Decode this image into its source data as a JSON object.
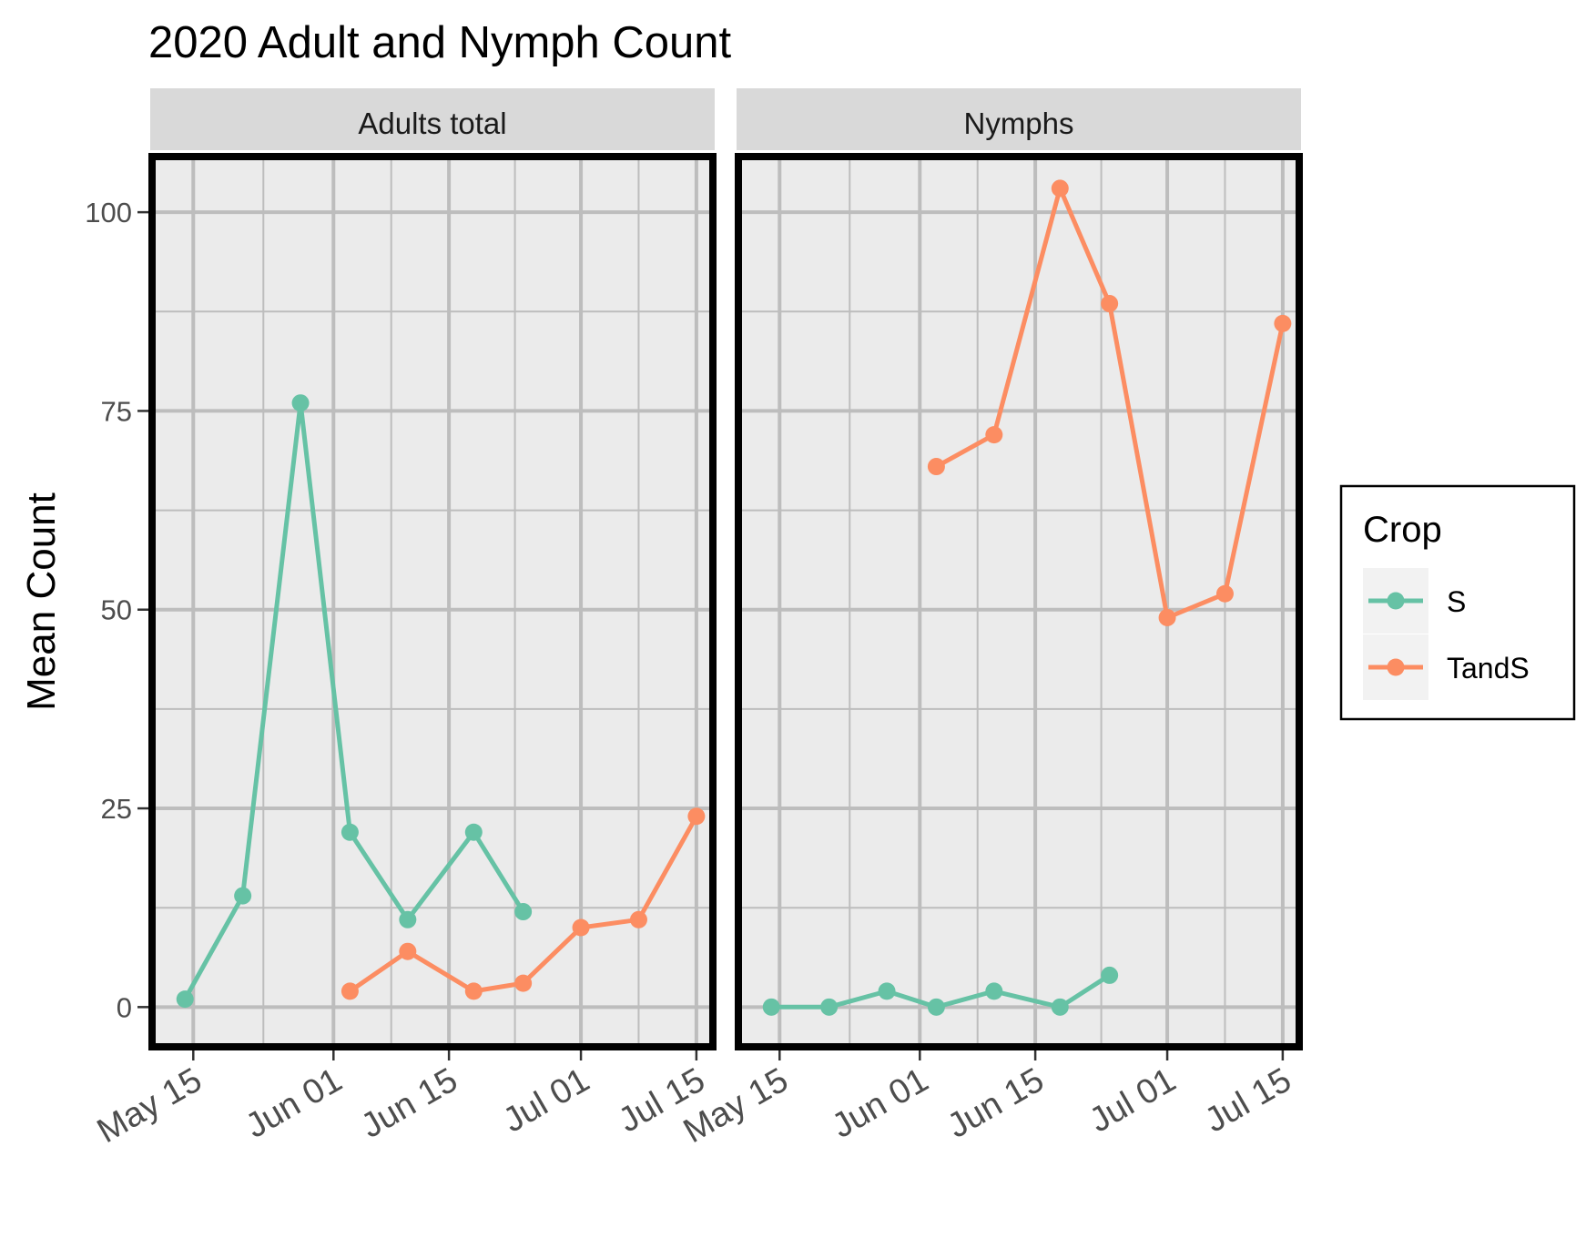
{
  "chart_data": {
    "type": "line",
    "title": "2020 Adult and Nymph Count",
    "ylabel": "Mean Count",
    "xlabel": "",
    "ylim": [
      -5,
      107
    ],
    "xlim": [
      "2020-05-10",
      "2020-07-17"
    ],
    "y_ticks": [
      0,
      25,
      50,
      75,
      100
    ],
    "x_ticks": [
      {
        "date": "2020-05-15",
        "label": "May 15"
      },
      {
        "date": "2020-06-01",
        "label": "Jun 01"
      },
      {
        "date": "2020-06-15",
        "label": "Jun 15"
      },
      {
        "date": "2020-07-01",
        "label": "Jul 01"
      },
      {
        "date": "2020-07-15",
        "label": "Jul 15"
      }
    ],
    "grid": true,
    "legend": {
      "title": "Crop",
      "position": "right"
    },
    "colors": {
      "S": "#66c2a5",
      "TandS": "#fc8d62"
    },
    "panels": [
      {
        "label": "Adults total",
        "series": [
          {
            "name": "S",
            "points": [
              {
                "x": "2020-05-14",
                "y": 1
              },
              {
                "x": "2020-05-21",
                "y": 14
              },
              {
                "x": "2020-05-28",
                "y": 76
              },
              {
                "x": "2020-06-03",
                "y": 22
              },
              {
                "x": "2020-06-10",
                "y": 11
              },
              {
                "x": "2020-06-18",
                "y": 22
              },
              {
                "x": "2020-06-24",
                "y": 12
              }
            ]
          },
          {
            "name": "TandS",
            "points": [
              {
                "x": "2020-06-03",
                "y": 2
              },
              {
                "x": "2020-06-10",
                "y": 7
              },
              {
                "x": "2020-06-18",
                "y": 2
              },
              {
                "x": "2020-06-24",
                "y": 3
              },
              {
                "x": "2020-07-01",
                "y": 10
              },
              {
                "x": "2020-07-08",
                "y": 11
              },
              {
                "x": "2020-07-15",
                "y": 24
              }
            ]
          }
        ]
      },
      {
        "label": "Nymphs",
        "series": [
          {
            "name": "S",
            "points": [
              {
                "x": "2020-05-14",
                "y": 0
              },
              {
                "x": "2020-05-21",
                "y": 0
              },
              {
                "x": "2020-05-28",
                "y": 2
              },
              {
                "x": "2020-06-03",
                "y": 0
              },
              {
                "x": "2020-06-10",
                "y": 2
              },
              {
                "x": "2020-06-18",
                "y": 0
              },
              {
                "x": "2020-06-24",
                "y": 4
              }
            ]
          },
          {
            "name": "TandS",
            "points": [
              {
                "x": "2020-06-03",
                "y": 68
              },
              {
                "x": "2020-06-10",
                "y": 72
              },
              {
                "x": "2020-06-18",
                "y": 103
              },
              {
                "x": "2020-06-24",
                "y": 88.5
              },
              {
                "x": "2020-07-01",
                "y": 49
              },
              {
                "x": "2020-07-08",
                "y": 52
              },
              {
                "x": "2020-07-15",
                "y": 86
              }
            ]
          }
        ]
      }
    ]
  }
}
